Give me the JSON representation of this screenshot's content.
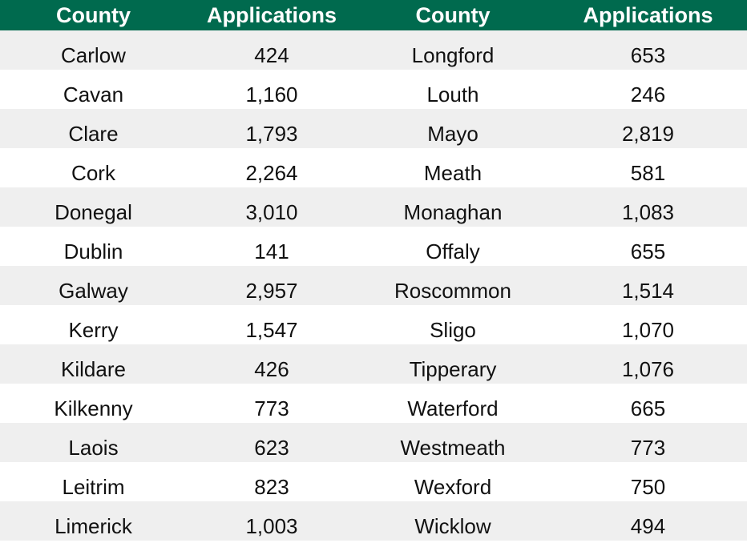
{
  "colors": {
    "header_bg": "#006a4e",
    "header_text": "#ffffff",
    "row_alt": "#efefef",
    "row_plain": "#ffffff"
  },
  "chart_data": {
    "type": "table",
    "columns": [
      "County",
      "Applications",
      "County",
      "Applications"
    ],
    "rows": [
      [
        "Carlow",
        "424",
        "Longford",
        "653"
      ],
      [
        "Cavan",
        "1,160",
        "Louth",
        "246"
      ],
      [
        "Clare",
        "1,793",
        "Mayo",
        "2,819"
      ],
      [
        "Cork",
        "2,264",
        "Meath",
        "581"
      ],
      [
        "Donegal",
        "3,010",
        "Monaghan",
        "1,083"
      ],
      [
        "Dublin",
        "141",
        "Offaly",
        "655"
      ],
      [
        "Galway",
        "2,957",
        "Roscommon",
        "1,514"
      ],
      [
        "Kerry",
        "1,547",
        "Sligo",
        "1,070"
      ],
      [
        "Kildare",
        "426",
        "Tipperary",
        "1,076"
      ],
      [
        "Kilkenny",
        "773",
        "Waterford",
        "665"
      ],
      [
        "Laois",
        "623",
        "Westmeath",
        "773"
      ],
      [
        "Leitrim",
        "823",
        "Wexford",
        "750"
      ],
      [
        "Limerick",
        "1,003",
        "Wicklow",
        "494"
      ]
    ]
  }
}
